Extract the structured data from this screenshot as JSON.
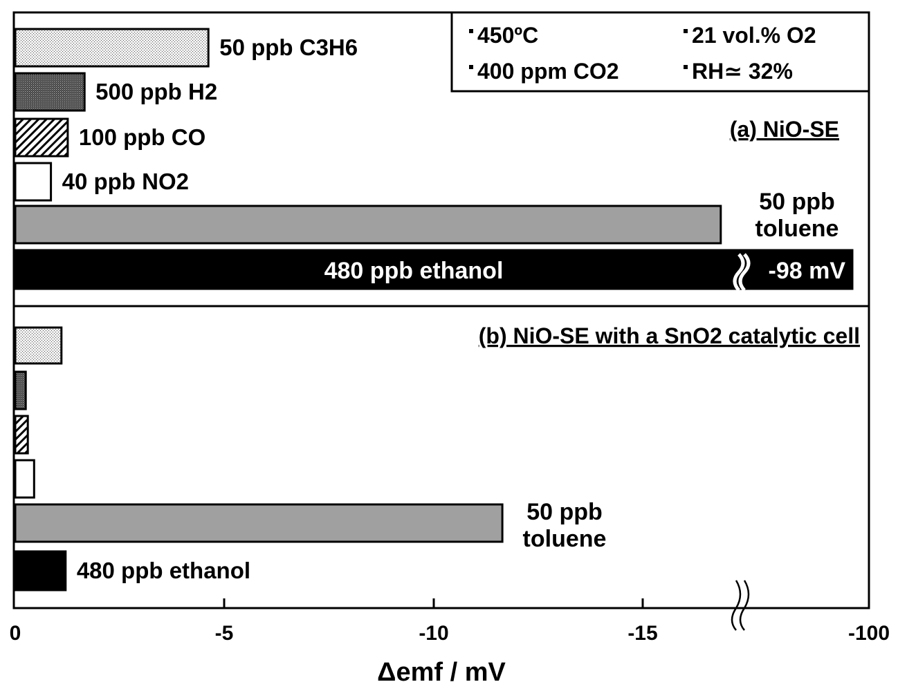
{
  "chart_data": {
    "type": "bar",
    "orientation": "horizontal",
    "xlabel": "Δemf / mV",
    "x_ticks": [
      "0",
      "-5",
      "-10",
      "-15",
      "-100"
    ],
    "xlim": [
      0,
      -20
    ],
    "axis_break": {
      "after_tick": "-15",
      "resumes_at_tick": "-100"
    },
    "grid": false,
    "conditions": {
      "temperature": "450ºC",
      "co2": "400 ppm CO2",
      "o2": "21 vol.% O2",
      "rh": "RH≃ 32%"
    },
    "legend": {
      "position": "top-right"
    },
    "categories": [
      "50 ppb C3H6",
      "500 ppb H2",
      "100 ppb CO",
      "40 ppb NO2",
      "50 ppb toluene",
      "480 ppb ethanol"
    ],
    "fills": [
      "dotted-light",
      "dotted-dark",
      "hatched",
      "white",
      "gray",
      "black"
    ],
    "panels": [
      {
        "label": "(a) NiO-SE",
        "values": [
          -4.6,
          -1.65,
          -1.25,
          -0.85,
          -16.8,
          -98
        ],
        "bar_labels": [
          "50 ppb C3H6",
          "500 ppb H2",
          "100 ppb CO",
          "40 ppb NO2",
          "50 ppb toluene",
          "480 ppb ethanol"
        ],
        "broken_bar_value_label": "-98 mV"
      },
      {
        "label": "(b) NiO-SE with a SnO2 catalytic cell",
        "values": [
          -1.1,
          -0.25,
          -0.3,
          -0.45,
          -11.6,
          -1.2
        ],
        "bar_labels": [
          "",
          "",
          "",
          "",
          "50 ppb toluene",
          "480 ppb ethanol"
        ]
      }
    ]
  },
  "colors": {
    "gray": "#a0a0a0",
    "black": "#000000",
    "white": "#ffffff"
  }
}
